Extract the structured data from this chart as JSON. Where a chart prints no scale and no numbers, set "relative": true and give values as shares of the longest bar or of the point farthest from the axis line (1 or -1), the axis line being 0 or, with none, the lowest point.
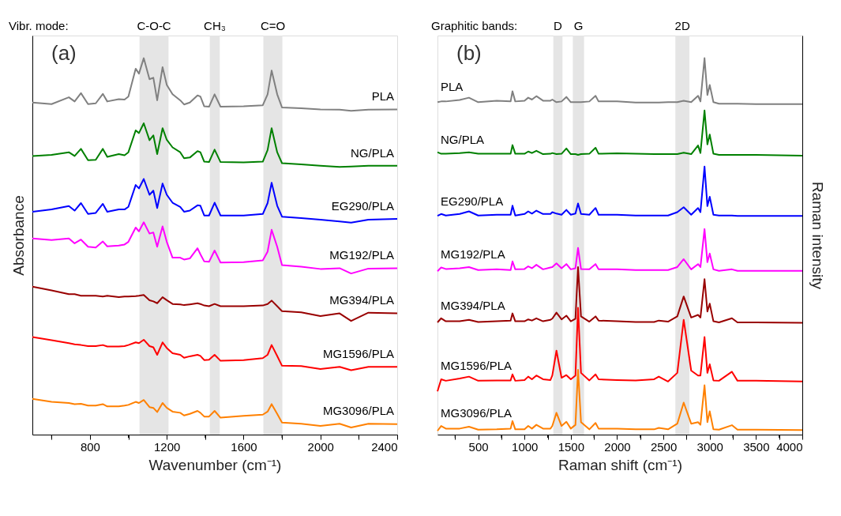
{
  "chart_data": [
    {
      "type": "line",
      "relative": true,
      "xlabel": "Wavenumber (cm⁻¹)",
      "ylabel": "Absorbance",
      "xlim": [
        500,
        2400
      ],
      "xticks": [
        {
          "value": 600,
          "label": null
        },
        800,
        {
          "value": 1000,
          "label": null
        },
        1200,
        {
          "value": 1400,
          "label": null
        },
        1600,
        {
          "value": 1800,
          "label": null
        },
        2000,
        {
          "value": 2200,
          "label": null
        },
        2400
      ],
      "tick_labels": "x",
      "grid": false,
      "line_style": "solid",
      "annotations": [
        "Vibr. mode:",
        "(a)"
      ],
      "bands": [
        {
          "axis": "x",
          "from": 1058,
          "to": 1209,
          "label": "C-O-C",
          "color": "#e5e5e5"
        },
        {
          "axis": "x",
          "from": 1424,
          "to": 1476,
          "label": "CH₃",
          "color": "#e5e5e5"
        },
        {
          "axis": "x",
          "from": 1703,
          "to": 1802,
          "label": "C=O",
          "color": "#e5e5e5"
        }
      ],
      "x": [
        500,
        600,
        690,
        720,
        753,
        790,
        830,
        867,
        890,
        950,
        980,
        1000,
        1038,
        1055,
        1080,
        1110,
        1130,
        1150,
        1178,
        1200,
        1230,
        1270,
        1290,
        1320,
        1360,
        1375,
        1395,
        1420,
        1449,
        1480,
        1600,
        1700,
        1725,
        1746,
        1775,
        1800,
        1900,
        2000,
        2100,
        2160,
        2250,
        2400
      ],
      "series": [
        {
          "name": "PLA",
          "color": "#808080",
          "values": [
            0.882,
            0.878,
            0.896,
            0.885,
            0.907,
            0.878,
            0.88,
            0.905,
            0.885,
            0.891,
            0.89,
            0.898,
            0.972,
            0.959,
            1.0,
            0.944,
            0.948,
            0.888,
            0.976,
            0.929,
            0.904,
            0.888,
            0.877,
            0.882,
            0.901,
            0.898,
            0.872,
            0.871,
            0.904,
            0.871,
            0.872,
            0.875,
            0.904,
            0.967,
            0.904,
            0.869,
            0.867,
            0.864,
            0.863,
            0.86,
            0.863,
            0.864
          ]
        },
        {
          "name": "NG/PLA",
          "color": "#008000",
          "values": [
            0.74,
            0.743,
            0.75,
            0.74,
            0.759,
            0.729,
            0.73,
            0.759,
            0.738,
            0.745,
            0.742,
            0.75,
            0.808,
            0.801,
            0.827,
            0.782,
            0.795,
            0.745,
            0.814,
            0.783,
            0.763,
            0.75,
            0.734,
            0.736,
            0.753,
            0.75,
            0.725,
            0.724,
            0.757,
            0.724,
            0.723,
            0.725,
            0.756,
            0.814,
            0.75,
            0.721,
            0.718,
            0.714,
            0.711,
            0.712,
            0.714,
            0.714
          ]
        },
        {
          "name": "EG290/PLA",
          "color": "#0000ff",
          "values": [
            0.592,
            0.598,
            0.607,
            0.595,
            0.615,
            0.586,
            0.589,
            0.613,
            0.592,
            0.598,
            0.598,
            0.605,
            0.663,
            0.654,
            0.679,
            0.637,
            0.648,
            0.602,
            0.667,
            0.637,
            0.616,
            0.605,
            0.592,
            0.595,
            0.609,
            0.608,
            0.582,
            0.582,
            0.616,
            0.582,
            0.582,
            0.586,
            0.615,
            0.669,
            0.608,
            0.579,
            0.575,
            0.571,
            0.566,
            0.563,
            0.571,
            0.573
          ]
        },
        {
          "name": "MG192/PLA",
          "color": "#ff00ff",
          "values": [
            0.521,
            0.517,
            0.521,
            0.508,
            0.518,
            0.499,
            0.497,
            0.513,
            0.5,
            0.502,
            0.505,
            0.512,
            0.55,
            0.54,
            0.564,
            0.534,
            0.537,
            0.499,
            0.553,
            0.512,
            0.47,
            0.47,
            0.465,
            0.468,
            0.495,
            0.479,
            0.46,
            0.459,
            0.489,
            0.457,
            0.458,
            0.463,
            0.486,
            0.544,
            0.499,
            0.45,
            0.446,
            0.44,
            0.442,
            0.428,
            0.441,
            0.442
          ]
        },
        {
          "name": "MG394/PLA",
          "color": "#990000",
          "values": [
            0.393,
            0.383,
            0.373,
            0.373,
            0.369,
            0.369,
            0.369,
            0.367,
            0.369,
            0.365,
            0.367,
            0.367,
            0.368,
            0.369,
            0.371,
            0.357,
            0.354,
            0.349,
            0.365,
            0.357,
            0.347,
            0.346,
            0.344,
            0.346,
            0.349,
            0.347,
            0.343,
            0.341,
            0.347,
            0.341,
            0.341,
            0.343,
            0.347,
            0.356,
            0.341,
            0.328,
            0.325,
            0.315,
            0.322,
            0.302,
            0.324,
            0.322
          ]
        },
        {
          "name": "MG1596/PLA",
          "color": "#ff0000",
          "values": [
            0.259,
            0.251,
            0.243,
            0.24,
            0.238,
            0.235,
            0.235,
            0.238,
            0.234,
            0.234,
            0.235,
            0.238,
            0.245,
            0.243,
            0.252,
            0.235,
            0.232,
            0.212,
            0.245,
            0.23,
            0.216,
            0.212,
            0.204,
            0.208,
            0.212,
            0.209,
            0.198,
            0.199,
            0.212,
            0.196,
            0.198,
            0.203,
            0.212,
            0.238,
            0.209,
            0.183,
            0.182,
            0.174,
            0.18,
            0.171,
            0.18,
            0.18
          ]
        },
        {
          "name": "MG3096/PLA",
          "color": "#ff8000",
          "values": [
            0.095,
            0.087,
            0.084,
            0.081,
            0.082,
            0.077,
            0.077,
            0.081,
            0.075,
            0.075,
            0.077,
            0.079,
            0.087,
            0.084,
            0.092,
            0.073,
            0.071,
            0.06,
            0.084,
            0.071,
            0.061,
            0.058,
            0.051,
            0.055,
            0.063,
            0.058,
            0.048,
            0.048,
            0.063,
            0.045,
            0.05,
            0.053,
            0.061,
            0.081,
            0.055,
            0.032,
            0.029,
            0.023,
            0.029,
            0.019,
            0.029,
            0.028
          ]
        }
      ]
    },
    {
      "type": "line",
      "relative": true,
      "xlabel": "Raman shift (cm⁻¹)",
      "y2label": "Raman intensity",
      "xlim": [
        60,
        4000
      ],
      "xticks": [
        {
          "value": 250,
          "label": null
        },
        500,
        {
          "value": 750,
          "label": null
        },
        1000,
        {
          "value": 1250,
          "label": null
        },
        1500,
        {
          "value": 1750,
          "label": null
        },
        2000,
        {
          "value": 2250,
          "label": null
        },
        2500,
        {
          "value": 2750,
          "label": null
        },
        3000,
        {
          "value": 3250,
          "label": null
        },
        3500,
        {
          "value": 3750,
          "label": null
        },
        4000
      ],
      "tick_labels": "x",
      "grid": false,
      "line_style": "solid",
      "annotations": [
        "Graphitic bands:",
        "(b)"
      ],
      "bands": [
        {
          "axis": "x",
          "from": 1311,
          "to": 1410,
          "label": "D",
          "color": "#e5e5e5"
        },
        {
          "axis": "x",
          "from": 1522,
          "to": 1643,
          "label": "G",
          "color": "#e5e5e5"
        },
        {
          "axis": "x",
          "from": 2629,
          "to": 2781,
          "label": "2D",
          "color": "#e5e5e5"
        }
      ],
      "x": [
        60,
        100,
        150,
        300,
        400,
        500,
        700,
        850,
        870,
        900,
        1000,
        1040,
        1080,
        1128,
        1200,
        1280,
        1300,
        1345,
        1400,
        1452,
        1500,
        1550,
        1578,
        1610,
        1700,
        1767,
        1800,
        2000,
        2200,
        2400,
        2450,
        2550,
        2650,
        2719,
        2800,
        2874,
        2900,
        2944,
        2975,
        3000,
        3040,
        3100,
        3240,
        3300,
        3500,
        4000
      ],
      "series": [
        {
          "name": "PLA",
          "color": "#808080",
          "values": [
            0.883,
            0.885,
            0.885,
            0.889,
            0.895,
            0.883,
            0.887,
            0.885,
            0.912,
            0.885,
            0.887,
            0.895,
            0.89,
            0.899,
            0.887,
            0.887,
            0.89,
            0.883,
            0.885,
            0.897,
            0.883,
            0.883,
            0.883,
            0.883,
            0.885,
            0.9,
            0.885,
            0.885,
            0.882,
            0.882,
            0.882,
            0.883,
            0.883,
            0.887,
            0.883,
            0.9,
            0.885,
            1.0,
            0.902,
            0.929,
            0.883,
            0.879,
            0.879,
            0.879,
            0.878,
            0.878
          ]
        },
        {
          "name": "NG/PLA",
          "color": "#008000",
          "values": [
            0.75,
            0.746,
            0.746,
            0.748,
            0.75,
            0.746,
            0.746,
            0.746,
            0.769,
            0.746,
            0.746,
            0.752,
            0.748,
            0.754,
            0.745,
            0.746,
            0.748,
            0.745,
            0.746,
            0.76,
            0.745,
            0.745,
            0.743,
            0.745,
            0.746,
            0.762,
            0.746,
            0.747,
            0.746,
            0.745,
            0.745,
            0.745,
            0.745,
            0.749,
            0.745,
            0.768,
            0.748,
            0.861,
            0.771,
            0.797,
            0.746,
            0.743,
            0.743,
            0.743,
            0.743,
            0.741
          ]
        },
        {
          "name": "EG290/PLA",
          "color": "#0000ff",
          "values": [
            0.581,
            0.586,
            0.582,
            0.586,
            0.593,
            0.582,
            0.584,
            0.584,
            0.608,
            0.582,
            0.586,
            0.593,
            0.587,
            0.595,
            0.586,
            0.586,
            0.591,
            0.587,
            0.584,
            0.597,
            0.584,
            0.587,
            0.614,
            0.586,
            0.584,
            0.602,
            0.584,
            0.584,
            0.582,
            0.582,
            0.582,
            0.582,
            0.591,
            0.604,
            0.584,
            0.602,
            0.591,
            0.712,
            0.607,
            0.632,
            0.584,
            0.582,
            0.582,
            0.581,
            0.581,
            0.581
          ]
        },
        {
          "name": "MG192/PLA",
          "color": "#ff00ff",
          "values": [
            0.434,
            0.444,
            0.44,
            0.442,
            0.445,
            0.437,
            0.439,
            0.437,
            0.46,
            0.439,
            0.44,
            0.447,
            0.442,
            0.451,
            0.439,
            0.444,
            0.445,
            0.455,
            0.442,
            0.453,
            0.439,
            0.442,
            0.496,
            0.44,
            0.439,
            0.453,
            0.439,
            0.439,
            0.437,
            0.437,
            0.437,
            0.437,
            0.445,
            0.466,
            0.439,
            0.453,
            0.445,
            0.546,
            0.458,
            0.481,
            0.439,
            0.435,
            0.439,
            0.435,
            0.435,
            0.435
          ]
        },
        {
          "name": "MG394/PLA",
          "color": "#990000",
          "values": [
            0.298,
            0.309,
            0.301,
            0.301,
            0.305,
            0.299,
            0.301,
            0.303,
            0.322,
            0.301,
            0.301,
            0.306,
            0.303,
            0.309,
            0.301,
            0.305,
            0.308,
            0.324,
            0.306,
            0.316,
            0.301,
            0.308,
            0.445,
            0.314,
            0.3,
            0.314,
            0.303,
            0.301,
            0.299,
            0.299,
            0.303,
            0.3,
            0.314,
            0.367,
            0.311,
            0.318,
            0.311,
            0.413,
            0.327,
            0.348,
            0.301,
            0.298,
            0.309,
            0.298,
            0.298,
            0.297
          ]
        },
        {
          "name": "MG1596/PLA",
          "color": "#ff0000",
          "values": [
            0.115,
            0.147,
            0.143,
            0.149,
            0.154,
            0.143,
            0.144,
            0.144,
            0.16,
            0.143,
            0.145,
            0.154,
            0.147,
            0.157,
            0.147,
            0.145,
            0.157,
            0.223,
            0.151,
            0.158,
            0.147,
            0.157,
            0.337,
            0.164,
            0.144,
            0.16,
            0.147,
            0.145,
            0.144,
            0.147,
            0.154,
            0.141,
            0.164,
            0.305,
            0.17,
            0.157,
            0.157,
            0.259,
            0.164,
            0.187,
            0.144,
            0.143,
            0.167,
            0.143,
            0.143,
            0.141
          ]
        },
        {
          "name": "MG3096/PLA",
          "color": "#ff8000",
          "values": [
            0.01,
            0.023,
            0.016,
            0.016,
            0.021,
            0.013,
            0.014,
            0.016,
            0.036,
            0.014,
            0.014,
            0.023,
            0.016,
            0.026,
            0.016,
            0.016,
            0.023,
            0.058,
            0.023,
            0.034,
            0.016,
            0.026,
            0.172,
            0.033,
            0.014,
            0.031,
            0.016,
            0.016,
            0.014,
            0.014,
            0.018,
            0.014,
            0.029,
            0.085,
            0.029,
            0.033,
            0.026,
            0.131,
            0.033,
            0.062,
            0.014,
            0.013,
            0.025,
            0.013,
            0.013,
            0.012
          ]
        }
      ]
    }
  ]
}
